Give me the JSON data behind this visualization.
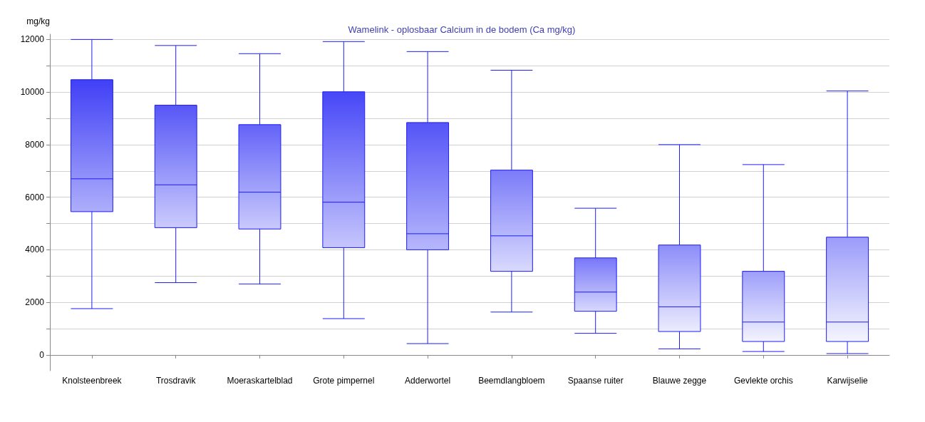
{
  "chart_data": {
    "type": "box",
    "title": "Wamelink - oplosbaar Calcium in de bodem (Ca mg/kg)",
    "ylabel": "mg/kg",
    "categories": [
      "Knolsteenbreek",
      "Trosdravik",
      "Moeraskartelblad",
      "Grote pimpernel",
      "Adderwortel",
      "Beemdlangbloem",
      "Spaanse ruiter",
      "Blauwe zegge",
      "Gevlekte orchis",
      "Karwijselie"
    ],
    "series": [
      {
        "color": "#1e1ef5",
        "boxes": [
          {
            "low": 1760,
            "q1": 5450,
            "median": 6700,
            "q3": 10470,
            "high": 12000
          },
          {
            "low": 2750,
            "q1": 4840,
            "median": 6470,
            "q3": 9500,
            "high": 11770
          },
          {
            "low": 2700,
            "q1": 4790,
            "median": 6190,
            "q3": 8760,
            "high": 11460
          },
          {
            "low": 1380,
            "q1": 4080,
            "median": 5810,
            "q3": 10010,
            "high": 11920
          },
          {
            "low": 430,
            "q1": 4000,
            "median": 4610,
            "q3": 8840,
            "high": 11540
          },
          {
            "low": 1630,
            "q1": 3180,
            "median": 4530,
            "q3": 7030,
            "high": 10830
          },
          {
            "low": 820,
            "q1": 1660,
            "median": 2390,
            "q3": 3690,
            "high": 5580
          },
          {
            "low": 230,
            "q1": 890,
            "median": 1830,
            "q3": 4180,
            "high": 8000
          },
          {
            "low": 130,
            "q1": 510,
            "median": 1250,
            "q3": 3180,
            "high": 7240
          },
          {
            "low": 50,
            "q1": 510,
            "median": 1250,
            "q3": 4480,
            "high": 10040
          }
        ]
      }
    ],
    "ylim": [
      -600,
      12200
    ],
    "yticks": [
      0,
      {
        "value": 1000,
        "label": null
      },
      2000,
      {
        "value": 3000,
        "label": null
      },
      4000,
      {
        "value": 5000,
        "label": null
      },
      6000,
      {
        "value": 7000,
        "label": null
      },
      8000,
      {
        "value": 9000,
        "label": null
      },
      10000,
      {
        "value": 11000,
        "label": null
      },
      12000
    ],
    "grid": "y"
  }
}
